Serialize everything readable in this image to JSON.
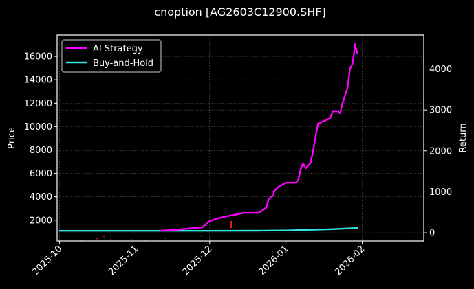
{
  "chart_data": {
    "type": "line",
    "title": "cnoption [AG2603C12900.SHF]",
    "xlabel": "",
    "ylabel": "Price",
    "y2label": "Return",
    "x_tick_labels": [
      "2025-10",
      "2025-11",
      "2025-12",
      "2026-01",
      "2026-02"
    ],
    "y_ticks": [
      2000,
      4000,
      6000,
      8000,
      10000,
      12000,
      14000,
      16000
    ],
    "y2_ticks": [
      0,
      1000,
      2000,
      3000,
      4000
    ],
    "ylim": [
      230,
      17820
    ],
    "y2lim": [
      -200,
      4830
    ],
    "xlim": [
      "2025-09-30",
      "2026-02-26"
    ],
    "grid": true,
    "legend_position": "upper left",
    "background": "#000000",
    "series": [
      {
        "name": "AI Strategy",
        "color": "#ff00ff",
        "axis": "left",
        "x": [
          "2025-11-11",
          "2025-11-19",
          "2025-11-28",
          "2025-12-01",
          "2025-12-04",
          "2025-12-08",
          "2025-12-12",
          "2025-12-15",
          "2025-12-17",
          "2025-12-21",
          "2025-12-23",
          "2025-12-24",
          "2025-12-25",
          "2025-12-27",
          "2025-12-27",
          "2025-12-29",
          "2026-01-01",
          "2026-01-05",
          "2026-01-06",
          "2026-01-07",
          "2026-01-08",
          "2026-01-09",
          "2026-01-11",
          "2026-01-12",
          "2026-01-14",
          "2026-01-19",
          "2026-01-20",
          "2026-01-22",
          "2026-01-23",
          "2026-01-24",
          "2026-01-26",
          "2026-01-27",
          "2026-01-28",
          "2026-01-29",
          "2026-01-29",
          "2026-01-30"
        ],
        "values": [
          1100,
          1220,
          1400,
          1920,
          2150,
          2340,
          2500,
          2630,
          2630,
          2630,
          2920,
          3100,
          3800,
          4150,
          4450,
          4860,
          5210,
          5210,
          5430,
          6380,
          6850,
          6440,
          6880,
          7900,
          10250,
          10720,
          11310,
          11310,
          11130,
          12010,
          13300,
          14940,
          15350,
          16700,
          17050,
          16230
        ]
      },
      {
        "name": "Buy-and-Hold",
        "color": "#33e6e6",
        "axis": "left",
        "x": [
          "2025-10-01",
          "2025-11-01",
          "2025-12-01",
          "2025-12-20",
          "2026-01-01",
          "2026-01-10",
          "2026-01-20",
          "2026-01-30"
        ],
        "values": [
          1100,
          1100,
          1100,
          1110,
          1130,
          1180,
          1240,
          1340
        ]
      }
    ]
  },
  "legend": {
    "items": [
      {
        "label": "AI Strategy",
        "color": "#ff00ff"
      },
      {
        "label": "Buy-and-Hold",
        "color": "#33e6e6"
      }
    ]
  },
  "colors": {
    "background": "#000000",
    "frame": "#ffffff",
    "grid": "#555555",
    "text": "#ffffff",
    "trade_marker": "#ff2020"
  }
}
